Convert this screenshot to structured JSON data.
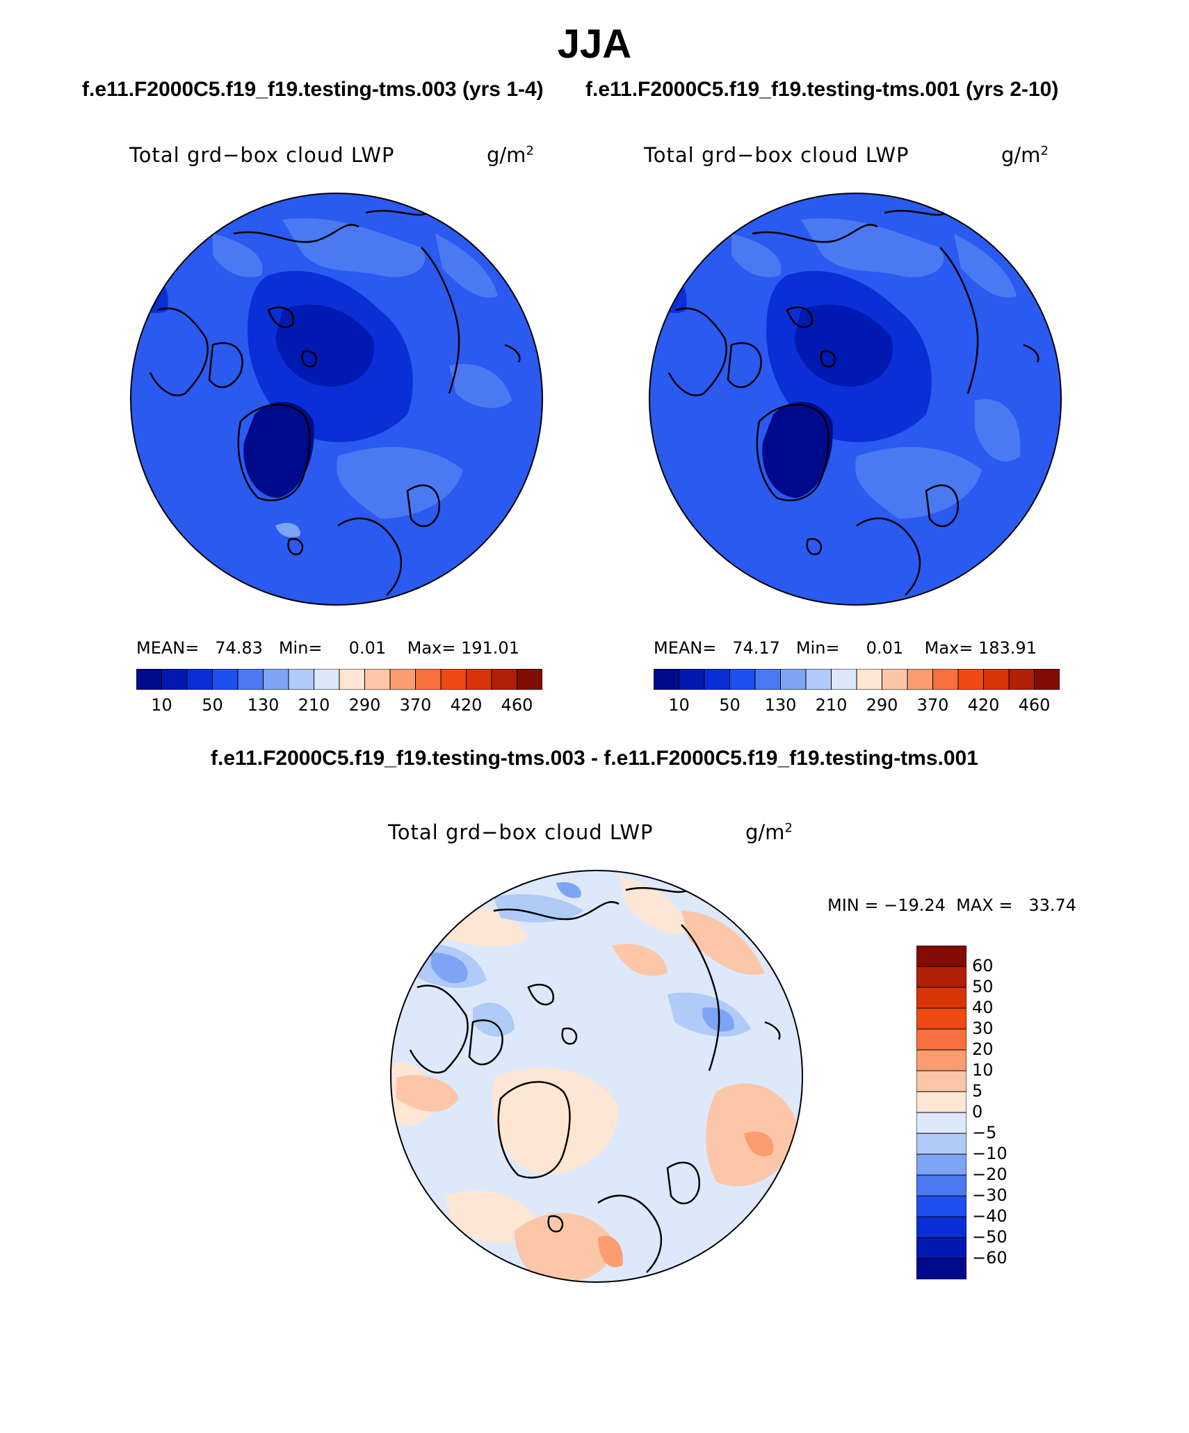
{
  "title": "JJA",
  "case_titles": {
    "left": "f.e11.F2000C5.f19_f19.testing-tms.003 (yrs 1-4)",
    "right": "f.e11.F2000C5.f19_f19.testing-tms.001 (yrs 2-10)"
  },
  "diff_title": "f.e11.F2000C5.f19_f19.testing-tms.003 - f.e11.F2000C5.f19_f19.testing-tms.001",
  "panels": {
    "left": {
      "field": "Total grd−box cloud LWP",
      "units": "g/m",
      "units_exp": "2",
      "stats": "MEAN=   74.83   Min=     0.01    Max= 191.01"
    },
    "right": {
      "field": "Total grd−box cloud LWP",
      "units": "g/m",
      "units_exp": "2",
      "stats": "MEAN=   74.17   Min=     0.01    Max= 183.91"
    },
    "diff": {
      "field": "Total grd−box cloud LWP",
      "units": "g/m",
      "units_exp": "2",
      "minmax": "MIN = −19.24  MAX =   33.74"
    }
  },
  "colorbar_abs": {
    "labels": [
      "10",
      "50",
      "130",
      "210",
      "290",
      "370",
      "420",
      "460"
    ],
    "colors": [
      "#000a8a",
      "#0019b0",
      "#0a2fd6",
      "#1e4ff0",
      "#4a79f2",
      "#7ea4f5",
      "#b1cbf8",
      "#dde9fb",
      "#fde6d4",
      "#fcc7a9",
      "#fb9d70",
      "#f7703e",
      "#f04a13",
      "#d93408",
      "#b01f06",
      "#820b02"
    ]
  },
  "colorbar_diff": {
    "labels": [
      "60",
      "50",
      "40",
      "30",
      "20",
      "10",
      "5",
      "0",
      "−5",
      "−10",
      "−20",
      "−30",
      "−40",
      "−50",
      "−60"
    ],
    "colors": [
      "#820b02",
      "#b01f06",
      "#d93408",
      "#f04a13",
      "#f7703e",
      "#fb9d70",
      "#fcc7a9",
      "#fde6d4",
      "#dde9fb",
      "#b1cbf8",
      "#7ea4f5",
      "#4a79f2",
      "#1e4ff0",
      "#0a2fd6",
      "#0019b0",
      "#000a8a"
    ]
  },
  "map_colors": {
    "base": "#2a5af0",
    "dark": "#0a2fd6",
    "darker": "#0019b0",
    "darkest": "#000a8a",
    "light": "#4a79f2",
    "lighter": "#7ea4f5",
    "diff_base": "#dde9fb",
    "diff_warm1": "#fde6d4",
    "diff_warm2": "#fcc7a9",
    "diff_warm3": "#fb9d70",
    "diff_cool1": "#b1cbf8",
    "diff_cool2": "#7ea4f5",
    "coast": "#000000"
  }
}
